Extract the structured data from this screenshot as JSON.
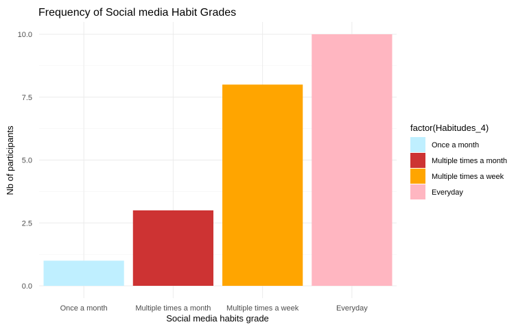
{
  "chart_data": {
    "type": "bar",
    "title": "Frequency of Social media Habit Grades",
    "xlabel": "Social media habits grade",
    "ylabel": "Nb of participants",
    "categories": [
      "Once a month",
      "Multiple times a month",
      "Multiple times a week",
      "Everyday"
    ],
    "values": [
      1,
      3,
      8,
      10
    ],
    "colors": [
      "#bfefff",
      "#cd3333",
      "#ffa500",
      "#ffb6c1"
    ],
    "ylim": [
      0,
      10
    ],
    "yticks": [
      0,
      2.5,
      5,
      7.5,
      10
    ],
    "ytick_labels": [
      "0.0",
      "2.5",
      "5.0",
      "7.5",
      "10.0"
    ],
    "grid": true,
    "legend": {
      "title": "factor(Habitudes_4)",
      "position": "right",
      "entries": [
        "Once a month",
        "Multiple times a month",
        "Multiple times a week",
        "Everyday"
      ]
    }
  }
}
